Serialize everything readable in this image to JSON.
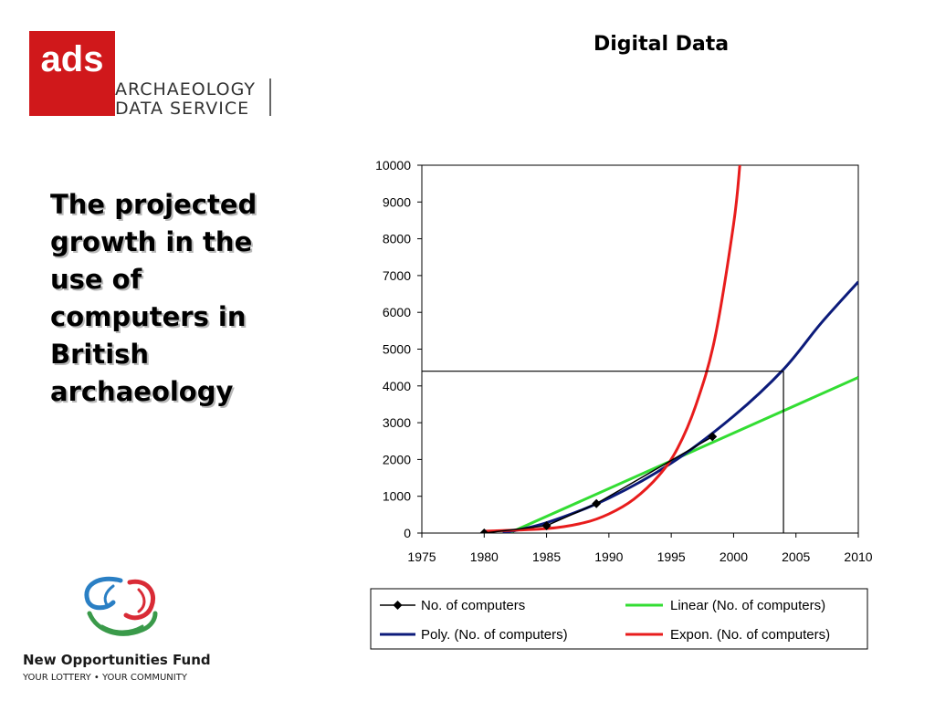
{
  "header": {
    "title": "Digital Data"
  },
  "logo": {
    "mark": "ads",
    "line1": "ARCHAEOLOGY",
    "line2": "DATA SERVICE",
    "brand_color": "#d0181b"
  },
  "slide": {
    "title": "The projected growth in the use of computers in British archaeology"
  },
  "footer_logo": {
    "name": "New Opportunities Fund",
    "tagline": "YOUR LOTTERY • YOUR COMMUNITY",
    "colors": [
      "#2a7fc4",
      "#d92b36",
      "#3a9a4a"
    ]
  },
  "chart_data": {
    "type": "line",
    "x_ticks": [
      1975,
      1980,
      1985,
      1990,
      1995,
      2000,
      2005,
      2010
    ],
    "y_ticks": [
      0,
      1000,
      2000,
      3000,
      4000,
      5000,
      6000,
      7000,
      8000,
      9000,
      10000
    ],
    "xlim": [
      1975,
      2010
    ],
    "ylim": [
      0,
      10000
    ],
    "grid": false,
    "legend_position": "bottom",
    "series": [
      {
        "name": "No. of computers",
        "color": "#000000",
        "marker": "diamond",
        "x": [
          1980,
          1985,
          1989,
          1998.3
        ],
        "y": [
          0,
          200,
          800,
          2620
        ]
      },
      {
        "name": "Linear (No. of computers)",
        "color": "#33dd33",
        "x": [
          1982,
          2010
        ],
        "y": [
          0,
          4230
        ]
      },
      {
        "name": "Poly. (No. of computers)",
        "color": "#0c1b7a",
        "x": [
          1981.5,
          1985,
          1990,
          1995,
          2000,
          2004,
          2007,
          2010
        ],
        "y": [
          0,
          280,
          950,
          1900,
          3180,
          4450,
          5700,
          6830
        ]
      },
      {
        "name": "Expon. (No. of computers)",
        "color": "#e81c1c",
        "x": [
          1980,
          1985,
          1988,
          1990,
          1992,
          1994,
          1995.5,
          1997,
          1998.5,
          2000,
          2000.5
        ],
        "y": [
          50,
          120,
          280,
          520,
          920,
          1560,
          2300,
          3500,
          5300,
          8400,
          10000
        ]
      }
    ],
    "annotation": {
      "x": 2004,
      "y": 4400
    }
  }
}
